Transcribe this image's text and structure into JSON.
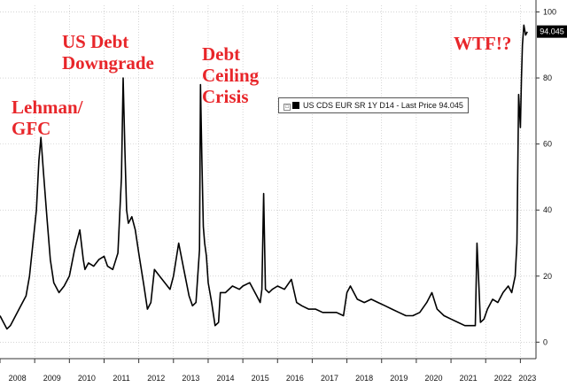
{
  "chart_data": {
    "type": "line",
    "legend": "US CDS EUR SR 1Y D14 - Last Price 94.045",
    "last_price_label": "94.045",
    "ylim": [
      -5,
      102
    ],
    "yticks": [
      0,
      20,
      40,
      60,
      80,
      100
    ],
    "ytick_labels": [
      "0",
      "20",
      "40",
      "60",
      "80",
      "100"
    ],
    "grid": true,
    "xlim": [
      2008.0,
      2023.45
    ],
    "xticks": [
      2008.5,
      2009.5,
      2010.5,
      2011.5,
      2012.5,
      2013.5,
      2014.5,
      2015.5,
      2016.5,
      2017.5,
      2018.5,
      2019.5,
      2020.5,
      2021.5,
      2022.5,
      2023.2
    ],
    "xtick_labels": [
      "2008",
      "2009",
      "2010",
      "2011",
      "2012",
      "2013",
      "2014",
      "2015",
      "2016",
      "2017",
      "2018",
      "2019",
      "2020",
      "2021",
      "2022",
      "2023"
    ],
    "series": [
      {
        "color": "#000000",
        "x": [
          2008.0,
          2008.1,
          2008.2,
          2008.3,
          2008.45,
          2008.6,
          2008.75,
          2008.85,
          2008.95,
          2009.05,
          2009.12,
          2009.18,
          2009.25,
          2009.35,
          2009.45,
          2009.55,
          2009.7,
          2009.85,
          2010.0,
          2010.15,
          2010.3,
          2010.4,
          2010.45,
          2010.55,
          2010.7,
          2010.85,
          2011.0,
          2011.1,
          2011.25,
          2011.4,
          2011.5,
          2011.55,
          2011.6,
          2011.65,
          2011.7,
          2011.8,
          2011.9,
          2012.0,
          2012.15,
          2012.25,
          2012.35,
          2012.45,
          2012.6,
          2012.75,
          2012.9,
          2013.0,
          2013.15,
          2013.3,
          2013.45,
          2013.55,
          2013.65,
          2013.75,
          2013.78,
          2013.82,
          2013.86,
          2013.9,
          2013.95,
          2014.0,
          2014.1,
          2014.2,
          2014.3,
          2014.35,
          2014.5,
          2014.7,
          2014.9,
          2015.0,
          2015.2,
          2015.4,
          2015.5,
          2015.55,
          2015.6,
          2015.65,
          2015.75,
          2015.85,
          2016.0,
          2016.2,
          2016.4,
          2016.55,
          2016.7,
          2016.9,
          2017.1,
          2017.3,
          2017.5,
          2017.7,
          2017.9,
          2018.0,
          2018.1,
          2018.3,
          2018.5,
          2018.7,
          2018.9,
          2019.1,
          2019.3,
          2019.5,
          2019.7,
          2019.9,
          2020.1,
          2020.3,
          2020.45,
          2020.6,
          2020.8,
          2021.0,
          2021.2,
          2021.4,
          2021.6,
          2021.7,
          2021.75,
          2021.8,
          2021.85,
          2021.95,
          2022.05,
          2022.2,
          2022.35,
          2022.5,
          2022.65,
          2022.75,
          2022.85,
          2022.9,
          2022.95,
          2023.0,
          2023.03,
          2023.06,
          2023.1,
          2023.15,
          2023.2
        ],
        "y": [
          8,
          6,
          4,
          5,
          8,
          11,
          14,
          20,
          30,
          40,
          55,
          62,
          52,
          38,
          25,
          18,
          15,
          17,
          20,
          28,
          34,
          25,
          22,
          24,
          23,
          25,
          26,
          23,
          22,
          27,
          50,
          80,
          58,
          40,
          36,
          38,
          34,
          27,
          17,
          10,
          12,
          22,
          20,
          18,
          16,
          20,
          30,
          22,
          14,
          11,
          12,
          28,
          78,
          55,
          35,
          30,
          26,
          18,
          12,
          5,
          6,
          15,
          15,
          17,
          16,
          17,
          18,
          14,
          12,
          16,
          45,
          16,
          15,
          16,
          17,
          16,
          19,
          12,
          11,
          10,
          10,
          9,
          9,
          9,
          8,
          15,
          17,
          13,
          12,
          13,
          12,
          11,
          10,
          9,
          8,
          8,
          9,
          12,
          15,
          10,
          8,
          7,
          6,
          5,
          5,
          5,
          30,
          18,
          6,
          7,
          10,
          13,
          12,
          15,
          17,
          15,
          20,
          30,
          75,
          65,
          80,
          90,
          96,
          93,
          94
        ]
      }
    ]
  },
  "annotations": [
    {
      "lines": [
        "Lehman/",
        "GFC"
      ]
    },
    {
      "lines": [
        "US Debt",
        "Downgrade"
      ]
    },
    {
      "lines": [
        "Debt",
        "Ceiling",
        "Crisis"
      ]
    },
    {
      "lines": [
        "WTF!?"
      ]
    }
  ],
  "legend_checkbox": "□"
}
